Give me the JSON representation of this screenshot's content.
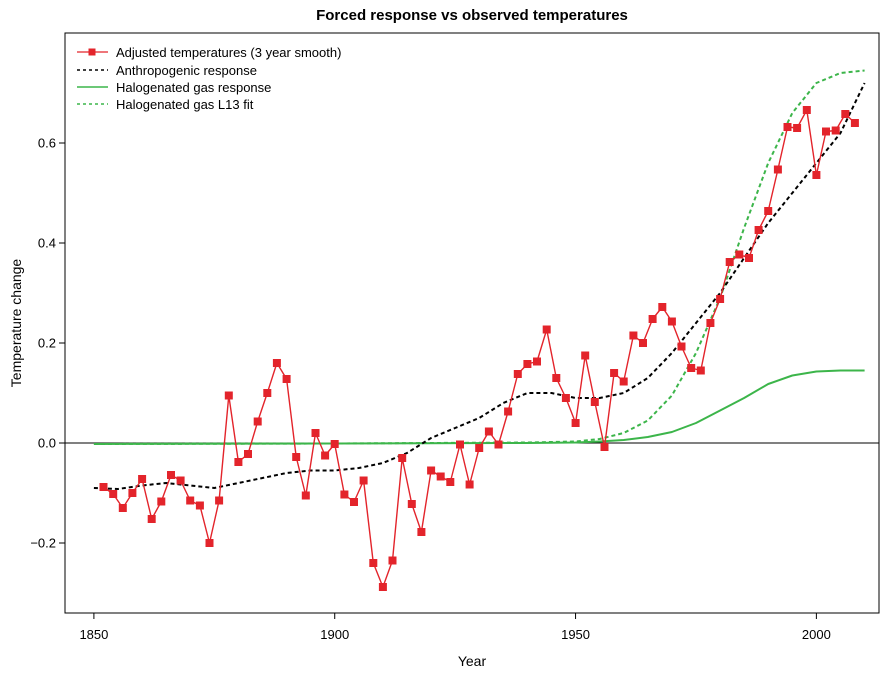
{
  "chart_data": {
    "type": "line",
    "title": "Forced response vs observed temperatures",
    "xlabel": "Year",
    "ylabel": "Temperature change",
    "xlim": [
      1844,
      2013
    ],
    "ylim": [
      -0.34,
      0.82
    ],
    "xticks": [
      1850,
      1900,
      1950,
      2000
    ],
    "yticks": [
      -0.2,
      0.0,
      0.2,
      0.4,
      0.6
    ],
    "ytick_labels": [
      "−0.2",
      "0.0",
      "0.2",
      "0.4",
      "0.6"
    ],
    "zero_line": true,
    "legend_position": "top-left",
    "series": [
      {
        "name": "Adjusted temperatures (3 year smooth)",
        "color": "#e3242b",
        "style": "solid-with-square-markers",
        "x": [
          1852,
          1854,
          1856,
          1858,
          1860,
          1862,
          1864,
          1866,
          1868,
          1870,
          1872,
          1874,
          1876,
          1878,
          1880,
          1882,
          1884,
          1886,
          1888,
          1890,
          1892,
          1894,
          1896,
          1898,
          1900,
          1902,
          1904,
          1906,
          1908,
          1910,
          1912,
          1914,
          1916,
          1918,
          1920,
          1922,
          1924,
          1926,
          1928,
          1930,
          1932,
          1934,
          1936,
          1938,
          1940,
          1942,
          1944,
          1946,
          1948,
          1950,
          1952,
          1954,
          1956,
          1958,
          1960,
          1962,
          1964,
          1966,
          1968,
          1970,
          1972,
          1974,
          1976,
          1978,
          1980,
          1982,
          1984,
          1986,
          1988,
          1990,
          1992,
          1994,
          1996,
          1998,
          2000,
          2002,
          2004,
          2006,
          2008
        ],
        "y": [
          -0.088,
          -0.102,
          -0.13,
          -0.1,
          -0.072,
          -0.152,
          -0.117,
          -0.064,
          -0.075,
          -0.115,
          -0.125,
          -0.2,
          -0.115,
          0.095,
          -0.038,
          -0.022,
          0.043,
          0.1,
          0.16,
          0.128,
          -0.028,
          -0.105,
          0.02,
          -0.025,
          -0.002,
          -0.103,
          -0.118,
          -0.075,
          -0.24,
          -0.288,
          -0.235,
          -0.03,
          -0.122,
          -0.178,
          -0.055,
          -0.067,
          -0.078,
          -0.003,
          -0.083,
          -0.01,
          0.023,
          -0.003,
          0.063,
          0.138,
          0.158,
          0.163,
          0.227,
          0.13,
          0.09,
          0.04,
          0.175,
          0.082,
          -0.008,
          0.14,
          0.123,
          0.215,
          0.2,
          0.248,
          0.272,
          0.243,
          0.193,
          0.15,
          0.145,
          0.24,
          0.288,
          0.362,
          0.377,
          0.37,
          0.426,
          0.464,
          0.547,
          0.632,
          0.63,
          0.666,
          0.536,
          0.623,
          0.625,
          0.658,
          0.64
        ]
      },
      {
        "name": "Anthropogenic response",
        "color": "#000000",
        "style": "dashed",
        "x": [
          1850,
          1855,
          1860,
          1865,
          1870,
          1875,
          1880,
          1885,
          1890,
          1895,
          1900,
          1905,
          1910,
          1915,
          1920,
          1925,
          1930,
          1935,
          1940,
          1945,
          1950,
          1955,
          1960,
          1965,
          1970,
          1975,
          1980,
          1985,
          1990,
          1995,
          2000,
          2005,
          2010
        ],
        "y": [
          -0.09,
          -0.092,
          -0.085,
          -0.08,
          -0.085,
          -0.09,
          -0.08,
          -0.07,
          -0.06,
          -0.055,
          -0.055,
          -0.05,
          -0.04,
          -0.02,
          0.01,
          0.03,
          0.05,
          0.08,
          0.1,
          0.1,
          0.09,
          0.09,
          0.1,
          0.13,
          0.18,
          0.24,
          0.3,
          0.37,
          0.44,
          0.5,
          0.56,
          0.62,
          0.72
        ]
      },
      {
        "name": "Halogenated gas response",
        "color": "#3cb54a",
        "style": "solid",
        "x": [
          1850,
          1900,
          1940,
          1950,
          1955,
          1960,
          1965,
          1970,
          1975,
          1980,
          1985,
          1990,
          1995,
          2000,
          2005,
          2010
        ],
        "y": [
          -0.002,
          -0.001,
          0.0,
          0.001,
          0.003,
          0.006,
          0.012,
          0.022,
          0.04,
          0.065,
          0.09,
          0.118,
          0.135,
          0.143,
          0.145,
          0.145
        ]
      },
      {
        "name": "Halogenated gas L13 fit",
        "color": "#3cb54a",
        "style": "dashed",
        "x": [
          1850,
          1900,
          1940,
          1950,
          1955,
          1960,
          1965,
          1970,
          1975,
          1980,
          1985,
          1990,
          1995,
          2000,
          2005,
          2010
        ],
        "y": [
          -0.002,
          -0.001,
          0.001,
          0.003,
          0.008,
          0.02,
          0.045,
          0.095,
          0.18,
          0.29,
          0.43,
          0.56,
          0.66,
          0.72,
          0.74,
          0.745
        ]
      }
    ]
  }
}
